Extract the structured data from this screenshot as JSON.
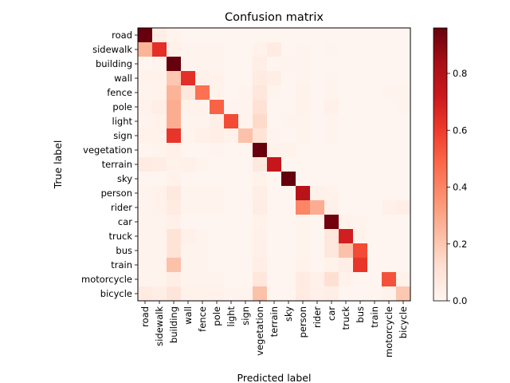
{
  "chart_data": {
    "type": "heatmap",
    "title": "Confusion matrix",
    "xlabel": "Predicted label",
    "ylabel": "True label",
    "x_categories": [
      "road",
      "sidewalk",
      "building",
      "wall",
      "fence",
      "pole",
      "light",
      "sign",
      "vegetation",
      "terrain",
      "sky",
      "person",
      "rider",
      "car",
      "truck",
      "bus",
      "train",
      "motorcycle",
      "bicycle"
    ],
    "y_categories": [
      "road",
      "sidewalk",
      "building",
      "wall",
      "fence",
      "pole",
      "light",
      "sign",
      "vegetation",
      "terrain",
      "sky",
      "person",
      "rider",
      "car",
      "truck",
      "bus",
      "train",
      "motorcycle",
      "bicycle"
    ],
    "colormap": "Reds",
    "vmin": 0.0,
    "vmax": 0.96,
    "colorbar_ticks": [
      "0.0",
      "0.2",
      "0.4",
      "0.6",
      "0.8"
    ],
    "values": [
      [
        0.96,
        0.04,
        0.01,
        0.0,
        0.0,
        0.0,
        0.0,
        0.0,
        0.0,
        0.0,
        0.0,
        0.0,
        0.0,
        0.0,
        0.0,
        0.0,
        0.0,
        0.0,
        0.0
      ],
      [
        0.26,
        0.64,
        0.03,
        0.01,
        0.01,
        0.01,
        0.0,
        0.0,
        0.02,
        0.06,
        0.0,
        0.01,
        0.0,
        0.01,
        0.0,
        0.0,
        0.0,
        0.0,
        0.0
      ],
      [
        0.0,
        0.01,
        0.96,
        0.01,
        0.01,
        0.01,
        0.0,
        0.0,
        0.04,
        0.0,
        0.01,
        0.01,
        0.0,
        0.0,
        0.0,
        0.0,
        0.0,
        0.0,
        0.0
      ],
      [
        0.02,
        0.02,
        0.2,
        0.64,
        0.03,
        0.02,
        0.0,
        0.0,
        0.06,
        0.04,
        0.0,
        0.01,
        0.0,
        0.01,
        0.0,
        0.0,
        0.0,
        0.0,
        0.0
      ],
      [
        0.01,
        0.02,
        0.26,
        0.08,
        0.46,
        0.02,
        0.0,
        0.01,
        0.08,
        0.01,
        0.0,
        0.02,
        0.0,
        0.01,
        0.0,
        0.0,
        0.0,
        0.01,
        0.01
      ],
      [
        0.02,
        0.04,
        0.28,
        0.02,
        0.02,
        0.5,
        0.01,
        0.01,
        0.11,
        0.0,
        0.0,
        0.02,
        0.0,
        0.03,
        0.0,
        0.0,
        0.0,
        0.0,
        0.01
      ],
      [
        0.01,
        0.02,
        0.28,
        0.01,
        0.01,
        0.04,
        0.56,
        0.01,
        0.14,
        0.0,
        0.01,
        0.01,
        0.0,
        0.01,
        0.0,
        0.0,
        0.0,
        0.0,
        0.0
      ],
      [
        0.02,
        0.02,
        0.62,
        0.01,
        0.03,
        0.04,
        0.02,
        0.22,
        0.1,
        0.01,
        0.0,
        0.01,
        0.0,
        0.01,
        0.0,
        0.0,
        0.0,
        0.0,
        0.0
      ],
      [
        0.0,
        0.01,
        0.03,
        0.0,
        0.0,
        0.01,
        0.0,
        0.0,
        0.96,
        0.02,
        0.02,
        0.0,
        0.0,
        0.0,
        0.0,
        0.0,
        0.0,
        0.0,
        0.0
      ],
      [
        0.06,
        0.05,
        0.02,
        0.03,
        0.01,
        0.0,
        0.0,
        0.0,
        0.07,
        0.74,
        0.0,
        0.0,
        0.0,
        0.0,
        0.0,
        0.0,
        0.0,
        0.0,
        0.0
      ],
      [
        0.0,
        0.0,
        0.02,
        0.0,
        0.0,
        0.0,
        0.0,
        0.0,
        0.02,
        0.0,
        0.96,
        0.0,
        0.0,
        0.0,
        0.0,
        0.0,
        0.0,
        0.0,
        0.0
      ],
      [
        0.01,
        0.02,
        0.07,
        0.01,
        0.01,
        0.01,
        0.0,
        0.0,
        0.04,
        0.0,
        0.0,
        0.78,
        0.03,
        0.02,
        0.0,
        0.0,
        0.0,
        0.0,
        0.0
      ],
      [
        0.01,
        0.02,
        0.06,
        0.01,
        0.01,
        0.01,
        0.0,
        0.0,
        0.05,
        0.0,
        0.0,
        0.4,
        0.28,
        0.03,
        0.0,
        0.0,
        0.0,
        0.03,
        0.04
      ],
      [
        0.01,
        0.01,
        0.03,
        0.0,
        0.0,
        0.0,
        0.0,
        0.0,
        0.02,
        0.0,
        0.0,
        0.01,
        0.0,
        0.94,
        0.02,
        0.01,
        0.0,
        0.0,
        0.0
      ],
      [
        0.01,
        0.01,
        0.1,
        0.03,
        0.01,
        0.0,
        0.0,
        0.0,
        0.03,
        0.0,
        0.0,
        0.01,
        0.0,
        0.08,
        0.7,
        0.02,
        0.0,
        0.0,
        0.0
      ],
      [
        0.01,
        0.01,
        0.1,
        0.01,
        0.01,
        0.0,
        0.0,
        0.0,
        0.03,
        0.0,
        0.0,
        0.01,
        0.0,
        0.08,
        0.22,
        0.56,
        0.0,
        0.0,
        0.0
      ],
      [
        0.01,
        0.01,
        0.22,
        0.01,
        0.01,
        0.0,
        0.0,
        0.0,
        0.04,
        0.0,
        0.0,
        0.02,
        0.0,
        0.02,
        0.04,
        0.62,
        0.0,
        0.0,
        0.0
      ],
      [
        0.01,
        0.01,
        0.04,
        0.01,
        0.01,
        0.01,
        0.0,
        0.0,
        0.08,
        0.0,
        0.0,
        0.06,
        0.03,
        0.12,
        0.02,
        0.0,
        0.0,
        0.54,
        0.02
      ],
      [
        0.06,
        0.04,
        0.09,
        0.02,
        0.02,
        0.02,
        0.01,
        0.01,
        0.22,
        0.0,
        0.0,
        0.06,
        0.03,
        0.04,
        0.0,
        0.0,
        0.0,
        0.02,
        0.2
      ]
    ]
  }
}
